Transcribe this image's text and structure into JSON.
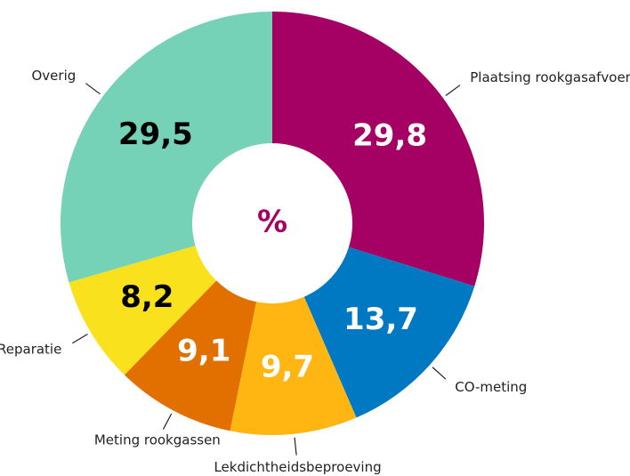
{
  "chart_data": {
    "type": "donut",
    "center_label": "%",
    "categories": [
      "Plaatsing rookgasafvoer",
      "CO-meting",
      "Lekdichtheidsbeproeving",
      "Meting rookgassen",
      "Reparatie",
      "Overig"
    ],
    "values": [
      29.8,
      13.7,
      9.7,
      9.1,
      8.2,
      29.5
    ],
    "value_labels": [
      "29,8",
      "13,7",
      "9,7",
      "9,1",
      "8,2",
      "29,5"
    ],
    "colors": [
      "#a50063",
      "#0079c2",
      "#ffb612",
      "#e17000",
      "#f9e11e",
      "#76d2b6"
    ],
    "label_colors": [
      "#ffffff",
      "#ffffff",
      "#ffffff",
      "#ffffff",
      "#000000",
      "#000000"
    ]
  }
}
